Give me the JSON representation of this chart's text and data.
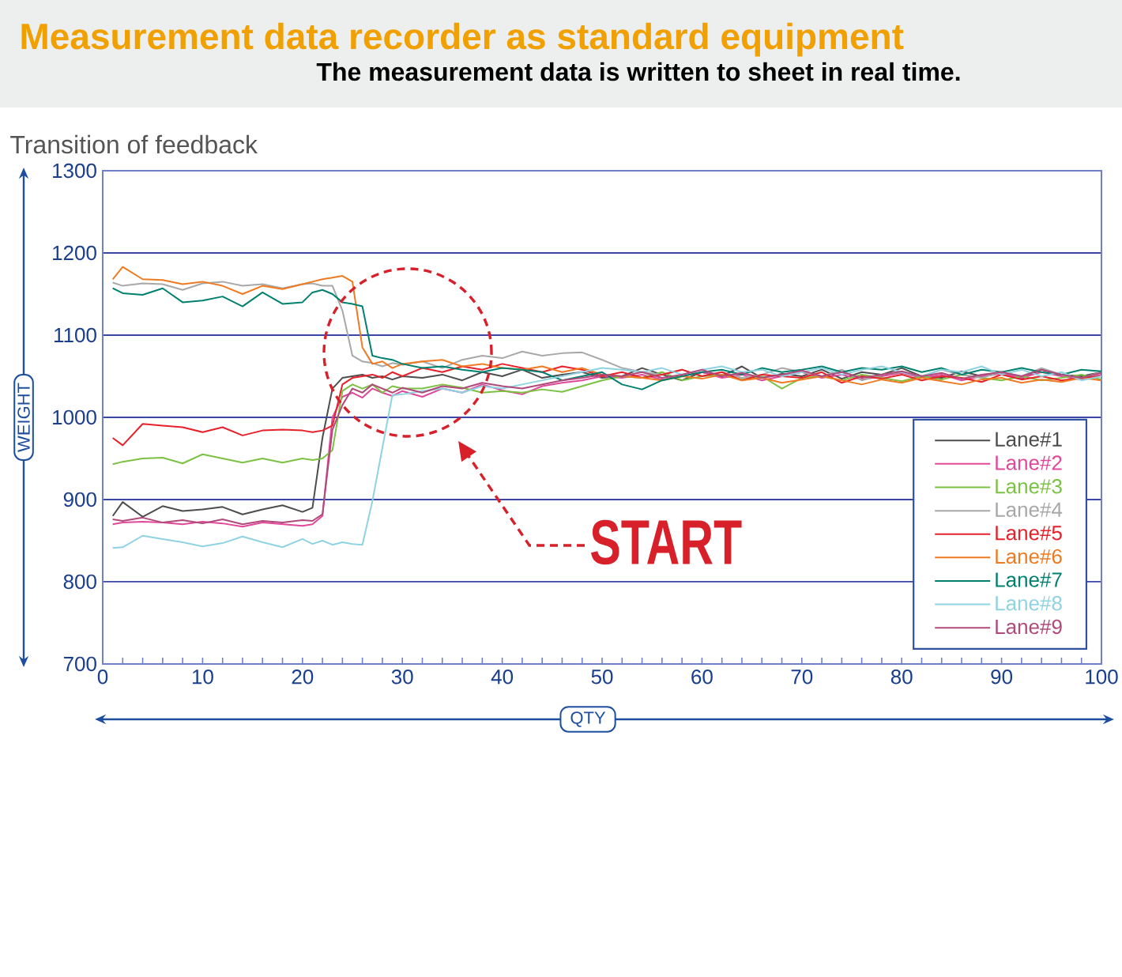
{
  "chart_data": {
    "type": "line",
    "title": "Transition of feedback",
    "xlabel": "QTY",
    "ylabel": "WEIGHT",
    "annotations": [
      "Measurement data recorder as standard equipment",
      "The measurement data is written to sheet in real time.",
      "START"
    ],
    "x": [
      1,
      2,
      4,
      6,
      8,
      10,
      12,
      14,
      16,
      18,
      20,
      21,
      22,
      23,
      24,
      25,
      26,
      27,
      28,
      29,
      30,
      32,
      34,
      36,
      38,
      40,
      42,
      44,
      46,
      48,
      50,
      52,
      54,
      56,
      58,
      60,
      62,
      64,
      66,
      68,
      70,
      72,
      74,
      76,
      78,
      80,
      82,
      84,
      86,
      88,
      90,
      92,
      94,
      96,
      98,
      100
    ],
    "series": [
      {
        "name": "Lane#1",
        "color": "#4d4d4d",
        "values": [
          880,
          897,
          879,
          892,
          886,
          888,
          891,
          882,
          888,
          893,
          885,
          890,
          975,
          1035,
          1048,
          1050,
          1052,
          1048,
          1050,
          1046,
          1050,
          1048,
          1052,
          1045,
          1055,
          1050,
          1058,
          1048,
          1052,
          1055,
          1048,
          1050,
          1060,
          1052,
          1045,
          1055,
          1050,
          1062,
          1048,
          1053,
          1050,
          1058,
          1047,
          1055,
          1052,
          1060,
          1050,
          1048,
          1056,
          1050,
          1055,
          1047,
          1058,
          1052,
          1050,
          1055
        ]
      },
      {
        "name": "Lane#2",
        "color": "#e0489a",
        "values": [
          870,
          872,
          873,
          872,
          870,
          873,
          871,
          867,
          872,
          870,
          868,
          870,
          880,
          1000,
          1025,
          1030,
          1024,
          1035,
          1030,
          1026,
          1032,
          1025,
          1035,
          1030,
          1040,
          1033,
          1028,
          1038,
          1042,
          1045,
          1050,
          1048,
          1052,
          1046,
          1050,
          1055,
          1048,
          1052,
          1045,
          1050,
          1055,
          1048,
          1052,
          1046,
          1050,
          1054,
          1048,
          1052,
          1045,
          1050,
          1053,
          1048,
          1055,
          1050,
          1046,
          1052
        ]
      },
      {
        "name": "Lane#3",
        "color": "#7cc242",
        "values": [
          943,
          946,
          950,
          951,
          944,
          955,
          950,
          945,
          950,
          945,
          950,
          948,
          950,
          960,
          1032,
          1040,
          1035,
          1040,
          1030,
          1038,
          1035,
          1035,
          1040,
          1036,
          1030,
          1032,
          1030,
          1034,
          1031,
          1038,
          1045,
          1050,
          1048,
          1055,
          1045,
          1050,
          1052,
          1046,
          1050,
          1035,
          1048,
          1050,
          1045,
          1052,
          1048,
          1044,
          1050,
          1046,
          1052,
          1048,
          1045,
          1050,
          1045,
          1048,
          1052,
          1046
        ]
      },
      {
        "name": "Lane#4",
        "color": "#a8a8a8",
        "values": [
          1164,
          1160,
          1163,
          1162,
          1155,
          1163,
          1165,
          1160,
          1162,
          1157,
          1162,
          1163,
          1160,
          1160,
          1130,
          1075,
          1068,
          1066,
          1062,
          1066,
          1064,
          1068,
          1060,
          1070,
          1075,
          1072,
          1080,
          1075,
          1078,
          1079,
          1070,
          1060,
          1055,
          1052,
          1058,
          1050,
          1055,
          1048,
          1052,
          1060,
          1055,
          1050,
          1058,
          1045,
          1052,
          1055,
          1050,
          1058,
          1052,
          1048,
          1055,
          1050,
          1060,
          1052,
          1048,
          1055
        ]
      },
      {
        "name": "Lane#5",
        "color": "#e8202a",
        "values": [
          975,
          966,
          992,
          990,
          988,
          982,
          988,
          978,
          984,
          985,
          984,
          982,
          984,
          990,
          1040,
          1048,
          1050,
          1052,
          1048,
          1055,
          1050,
          1060,
          1055,
          1062,
          1058,
          1065,
          1060,
          1055,
          1062,
          1058,
          1050,
          1055,
          1048,
          1052,
          1058,
          1050,
          1055,
          1045,
          1052,
          1050,
          1048,
          1055,
          1042,
          1050,
          1047,
          1052,
          1045,
          1050,
          1048,
          1043,
          1052,
          1046,
          1050,
          1045,
          1048,
          1050
        ]
      },
      {
        "name": "Lane#6",
        "color": "#f07a22",
        "values": [
          1168,
          1183,
          1168,
          1167,
          1162,
          1165,
          1160,
          1150,
          1160,
          1156,
          1162,
          1165,
          1168,
          1170,
          1172,
          1165,
          1085,
          1065,
          1068,
          1060,
          1065,
          1068,
          1070,
          1062,
          1065,
          1060,
          1058,
          1062,
          1055,
          1060,
          1052,
          1050,
          1048,
          1045,
          1050,
          1047,
          1052,
          1045,
          1048,
          1042,
          1046,
          1050,
          1045,
          1040,
          1046,
          1042,
          1048,
          1044,
          1040,
          1046,
          1048,
          1042,
          1046,
          1043,
          1048,
          1045
        ]
      },
      {
        "name": "Lane#7",
        "color": "#00806e",
        "values": [
          1157,
          1151,
          1149,
          1157,
          1140,
          1142,
          1147,
          1135,
          1152,
          1138,
          1140,
          1152,
          1155,
          1150,
          1140,
          1138,
          1135,
          1075,
          1072,
          1070,
          1065,
          1060,
          1062,
          1058,
          1055,
          1060,
          1058,
          1055,
          1045,
          1050,
          1055,
          1040,
          1034,
          1045,
          1050,
          1055,
          1058,
          1052,
          1060,
          1055,
          1058,
          1062,
          1055,
          1060,
          1058,
          1062,
          1055,
          1060,
          1052,
          1058,
          1055,
          1060,
          1055,
          1052,
          1058,
          1056
        ]
      },
      {
        "name": "Lane#8",
        "color": "#8fd3e3",
        "values": [
          841,
          842,
          856,
          852,
          848,
          843,
          847,
          855,
          848,
          842,
          852,
          846,
          850,
          845,
          848,
          846,
          845,
          898,
          963,
          1027,
          1028,
          1032,
          1035,
          1030,
          1038,
          1035,
          1040,
          1045,
          1050,
          1055,
          1060,
          1058,
          1055,
          1060,
          1052,
          1058,
          1062,
          1055,
          1058,
          1050,
          1055,
          1060,
          1052,
          1058,
          1062,
          1055,
          1050,
          1058,
          1055,
          1062,
          1052,
          1058,
          1050,
          1055,
          1045,
          1050
        ]
      },
      {
        "name": "Lane#9",
        "color": "#b04a7a",
        "values": [
          876,
          874,
          878,
          872,
          875,
          871,
          876,
          870,
          874,
          872,
          875,
          874,
          882,
          985,
          1015,
          1035,
          1030,
          1040,
          1035,
          1030,
          1036,
          1030,
          1038,
          1035,
          1042,
          1038,
          1035,
          1040,
          1045,
          1048,
          1052,
          1050,
          1055,
          1048,
          1052,
          1058,
          1050,
          1054,
          1048,
          1052,
          1057,
          1050,
          1055,
          1048,
          1052,
          1056,
          1050,
          1054,
          1047,
          1052,
          1055,
          1050,
          1058,
          1052,
          1048,
          1054
        ]
      }
    ],
    "xlim": [
      0,
      100
    ],
    "xticks": [
      0,
      10,
      20,
      30,
      40,
      50,
      60,
      70,
      80,
      90,
      100
    ],
    "ylim": [
      700,
      1300
    ],
    "yticks": [
      700,
      800,
      900,
      1000,
      1100,
      1200,
      1300
    ],
    "grid": "y",
    "legend": "bottom right",
    "line_style": "solid"
  }
}
